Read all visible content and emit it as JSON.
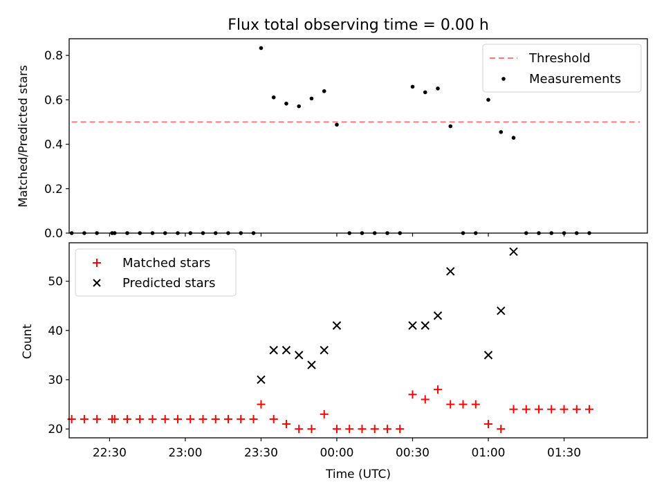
{
  "chart_data": [
    {
      "type": "scatter",
      "title": "Flux total observing time = 0.00 h",
      "ylabel": "Matched/Predicted stars",
      "ylim": [
        0,
        0.875
      ],
      "yticks": [
        0.0,
        0.2,
        0.4,
        0.6,
        0.8
      ],
      "ytick_labels": [
        "0.0",
        "0.2",
        "0.4",
        "0.6",
        "0.8"
      ],
      "xlim": [
        "22:14",
        "02:03"
      ],
      "legend": {
        "location": "upper right",
        "entries": [
          "Threshold",
          "Measurements"
        ]
      },
      "threshold": {
        "name": "Threshold",
        "x": [
          "22:15",
          "02:00"
        ],
        "y": 0.5,
        "color": "#ff7b7b"
      },
      "series": [
        {
          "name": "Measurements",
          "marker": "dot",
          "color": "#000000",
          "x": [
            "22:15",
            "22:20",
            "22:25",
            "22:31",
            "22:32",
            "22:37",
            "22:42",
            "22:47",
            "22:52",
            "22:57",
            "23:02",
            "23:07",
            "23:12",
            "23:17",
            "23:22",
            "23:27",
            "23:30",
            "23:35",
            "23:40",
            "23:45",
            "23:50",
            "23:55",
            "00:00",
            "00:05",
            "00:10",
            "00:15",
            "00:20",
            "00:25",
            "00:30",
            "00:35",
            "00:40",
            "00:45",
            "00:50",
            "00:55",
            "01:00",
            "01:05",
            "01:10",
            "01:15",
            "01:20",
            "01:25",
            "01:30",
            "01:35",
            "01:40"
          ],
          "y": [
            0,
            0,
            0,
            0,
            0,
            0,
            0,
            0,
            0,
            0,
            0,
            0,
            0,
            0,
            0,
            0,
            0.833,
            0.611,
            0.583,
            0.571,
            0.606,
            0.639,
            0.488,
            0,
            0,
            0,
            0,
            0,
            0.659,
            0.634,
            0.651,
            0.481,
            0,
            0,
            0.6,
            0.455,
            0.429,
            0,
            0,
            0,
            0,
            0,
            0
          ]
        }
      ]
    },
    {
      "type": "scatter",
      "xlabel": "Time (UTC)",
      "ylabel": "Count",
      "ylim": [
        18.2,
        57.8
      ],
      "yticks": [
        20,
        30,
        40,
        50
      ],
      "ytick_labels": [
        "20",
        "30",
        "40",
        "50"
      ],
      "xlim": [
        "22:14",
        "02:03"
      ],
      "xticks": [
        "22:30",
        "23:00",
        "23:30",
        "00:00",
        "00:30",
        "01:00",
        "01:30"
      ],
      "xtick_labels": [
        "22:30",
        "23:00",
        "23:30",
        "00:00",
        "00:30",
        "01:00",
        "01:30"
      ],
      "legend": {
        "location": "upper left",
        "entries": [
          "Matched stars",
          "Predicted stars"
        ]
      },
      "series": [
        {
          "name": "Matched stars",
          "marker": "plus",
          "color": "#ff0000",
          "x": [
            "22:15",
            "22:20",
            "22:25",
            "22:31",
            "22:32",
            "22:37",
            "22:42",
            "22:47",
            "22:52",
            "22:57",
            "23:02",
            "23:07",
            "23:12",
            "23:17",
            "23:22",
            "23:27",
            "23:30",
            "23:35",
            "23:40",
            "23:45",
            "23:50",
            "23:55",
            "00:00",
            "00:05",
            "00:10",
            "00:15",
            "00:20",
            "00:25",
            "00:30",
            "00:35",
            "00:40",
            "00:45",
            "00:50",
            "00:55",
            "01:00",
            "01:05",
            "01:10",
            "01:15",
            "01:20",
            "01:25",
            "01:30",
            "01:35",
            "01:40"
          ],
          "y": [
            22,
            22,
            22,
            22,
            22,
            22,
            22,
            22,
            22,
            22,
            22,
            22,
            22,
            22,
            22,
            22,
            25,
            22,
            21,
            20,
            20,
            23,
            20,
            20,
            20,
            20,
            20,
            20,
            27,
            26,
            28,
            25,
            25,
            25,
            21,
            20,
            24,
            24,
            24,
            24,
            24,
            24,
            24
          ]
        },
        {
          "name": "Predicted stars",
          "marker": "x",
          "color": "#000000",
          "x": [
            "23:30",
            "23:35",
            "23:40",
            "23:45",
            "23:50",
            "23:55",
            "00:00",
            "00:30",
            "00:35",
            "00:40",
            "00:45",
            "01:00",
            "01:05",
            "01:10"
          ],
          "y": [
            30,
            36,
            36,
            35,
            33,
            36,
            41,
            41,
            41,
            43,
            52,
            35,
            44,
            56
          ]
        }
      ]
    }
  ]
}
